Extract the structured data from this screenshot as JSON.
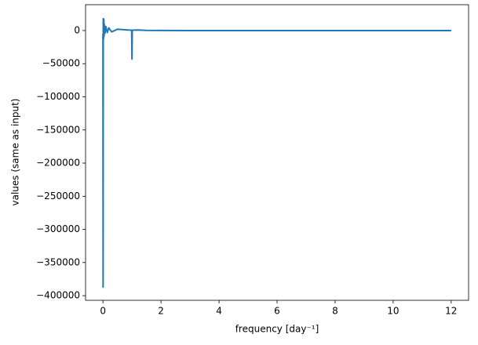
{
  "chart_data": {
    "type": "line",
    "xlabel": "frequency [day⁻¹]",
    "ylabel": "values (same as input)",
    "x": [
      0,
      0.005,
      0.01,
      0.02,
      0.03,
      0.04,
      0.05,
      0.07,
      0.1,
      0.15,
      0.2,
      0.3,
      0.5,
      0.8,
      0.99,
      1.0,
      1.01,
      1.2,
      1.5,
      2,
      3,
      6,
      9,
      12
    ],
    "values": [
      -5000,
      -387000,
      18000,
      -12000,
      17000,
      -8000,
      9000,
      -4000,
      6000,
      -3000,
      4000,
      -2000,
      2000,
      1000,
      500,
      -43000,
      500,
      800,
      300,
      100,
      0,
      0,
      0,
      0
    ],
    "color": "#1f77b4",
    "xlim": [
      -0.6,
      12.6
    ],
    "ylim": [
      -407000,
      39000
    ],
    "xticks": [
      0,
      2,
      4,
      6,
      8,
      10,
      12
    ],
    "yticks": [
      0,
      {
        "value": -50000,
        "label": "−50000"
      },
      {
        "value": -100000,
        "label": "−100000"
      },
      {
        "value": -150000,
        "label": "−150000"
      },
      {
        "value": -200000,
        "label": "−200000"
      },
      {
        "value": -250000,
        "label": "−250000"
      },
      {
        "value": -300000,
        "label": "−300000"
      },
      {
        "value": -350000,
        "label": "−350000"
      },
      {
        "value": -400000,
        "label": "−400000"
      }
    ]
  }
}
